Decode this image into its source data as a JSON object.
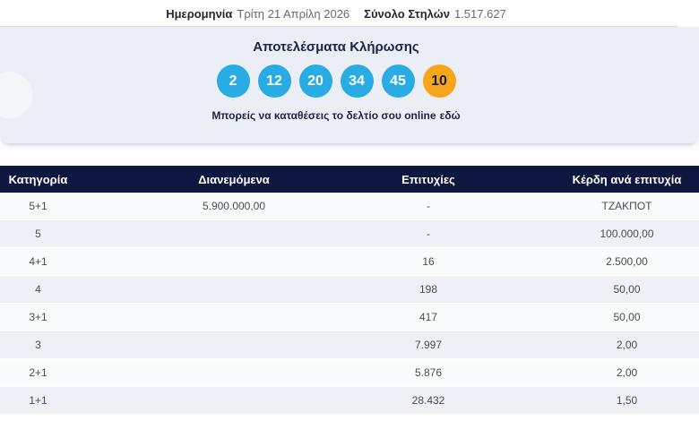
{
  "summary": {
    "date_label": "Ημερομηνία",
    "date_value": "Τρίτη 21 Απρίλη 2026",
    "columns_label": "Σύνολο Στηλών",
    "columns_value": "1.517.627"
  },
  "results": {
    "title": "Αποτελέσματα Κλήρωσης",
    "numbers": [
      "2",
      "12",
      "20",
      "34",
      "45"
    ],
    "bonus_number": "10",
    "note_text": "Μπορείς να καταθέσεις το δελτίο σου online",
    "note_link": "εδώ",
    "colors": {
      "number_ball": "#29ace3",
      "bonus_ball": "#f7a51b",
      "header_navy": "#0e1740"
    }
  },
  "table": {
    "headers": [
      "Κατηγορία",
      "Διανεμόμενα",
      "Επιτυχίες",
      "Κέρδη ανά επιτυχία"
    ],
    "rows": [
      {
        "category": "5+1",
        "distributed": "5.900.000,00",
        "winners": "-",
        "prize": "ΤΖΑΚΠΟΤ"
      },
      {
        "category": "5",
        "distributed": "",
        "winners": "-",
        "prize": "100.000,00"
      },
      {
        "category": "4+1",
        "distributed": "",
        "winners": "16",
        "prize": "2.500,00"
      },
      {
        "category": "4",
        "distributed": "",
        "winners": "198",
        "prize": "50,00"
      },
      {
        "category": "3+1",
        "distributed": "",
        "winners": "417",
        "prize": "50,00"
      },
      {
        "category": "3",
        "distributed": "",
        "winners": "7.997",
        "prize": "2,00"
      },
      {
        "category": "2+1",
        "distributed": "",
        "winners": "5.876",
        "prize": "2,00"
      },
      {
        "category": "1+1",
        "distributed": "",
        "winners": "28.432",
        "prize": "1,50"
      }
    ]
  }
}
